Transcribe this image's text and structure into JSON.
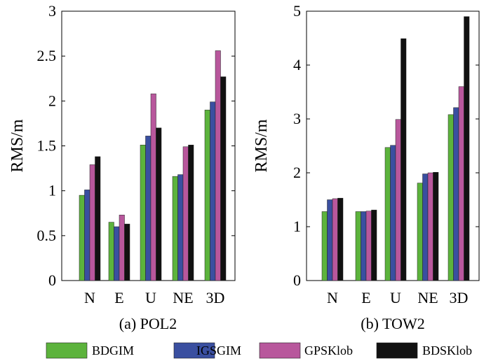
{
  "chart_data": [
    {
      "type": "bar",
      "title": "(a) POL2",
      "xlabel": "",
      "ylabel": "RMS/m",
      "categories": [
        "N",
        "E",
        "U",
        "NE",
        "3D"
      ],
      "ylim": [
        0,
        3
      ],
      "yticks": [
        0,
        0.5,
        1,
        1.5,
        2,
        2.5,
        3
      ],
      "ytick_labels": [
        "0",
        "0.5",
        "1",
        "1.5",
        "2",
        "2.5",
        "3"
      ],
      "series": [
        {
          "name": "BDGIM",
          "values": [
            0.95,
            0.65,
            1.51,
            1.16,
            1.9
          ]
        },
        {
          "name": "IGSGIM",
          "values": [
            1.01,
            0.6,
            1.61,
            1.18,
            1.99
          ]
        },
        {
          "name": "GPSKlob",
          "values": [
            1.29,
            0.73,
            2.08,
            1.49,
            2.56
          ]
        },
        {
          "name": "BDSKlob",
          "values": [
            1.38,
            0.63,
            1.7,
            1.51,
            2.27
          ]
        }
      ]
    },
    {
      "type": "bar",
      "title": "(b) TOW2",
      "xlabel": "",
      "ylabel": "RMS/m",
      "categories": [
        "N",
        "E",
        "U",
        "NE",
        "3D"
      ],
      "ylim": [
        0,
        5
      ],
      "yticks": [
        0,
        1,
        2,
        3,
        4,
        5
      ],
      "ytick_labels": [
        "0",
        "1",
        "2",
        "3",
        "4",
        "5"
      ],
      "series": [
        {
          "name": "BDGIM",
          "values": [
            1.28,
            1.28,
            2.47,
            1.81,
            3.08
          ]
        },
        {
          "name": "IGSGIM",
          "values": [
            1.5,
            1.28,
            2.51,
            1.98,
            3.21
          ]
        },
        {
          "name": "GPSKlob",
          "values": [
            1.52,
            1.29,
            2.99,
            2.0,
            3.6
          ]
        },
        {
          "name": "BDSKlob",
          "values": [
            1.53,
            1.31,
            4.49,
            2.01,
            4.9
          ]
        }
      ]
    }
  ],
  "legend": [
    {
      "label": "BDGIM",
      "color": "#5cb33c"
    },
    {
      "label": "IGSGIM",
      "color": "#3a4fa0"
    },
    {
      "label": "GPSKlob",
      "color": "#b8579c"
    },
    {
      "label": "BDSKlob",
      "color": "#111111"
    }
  ]
}
